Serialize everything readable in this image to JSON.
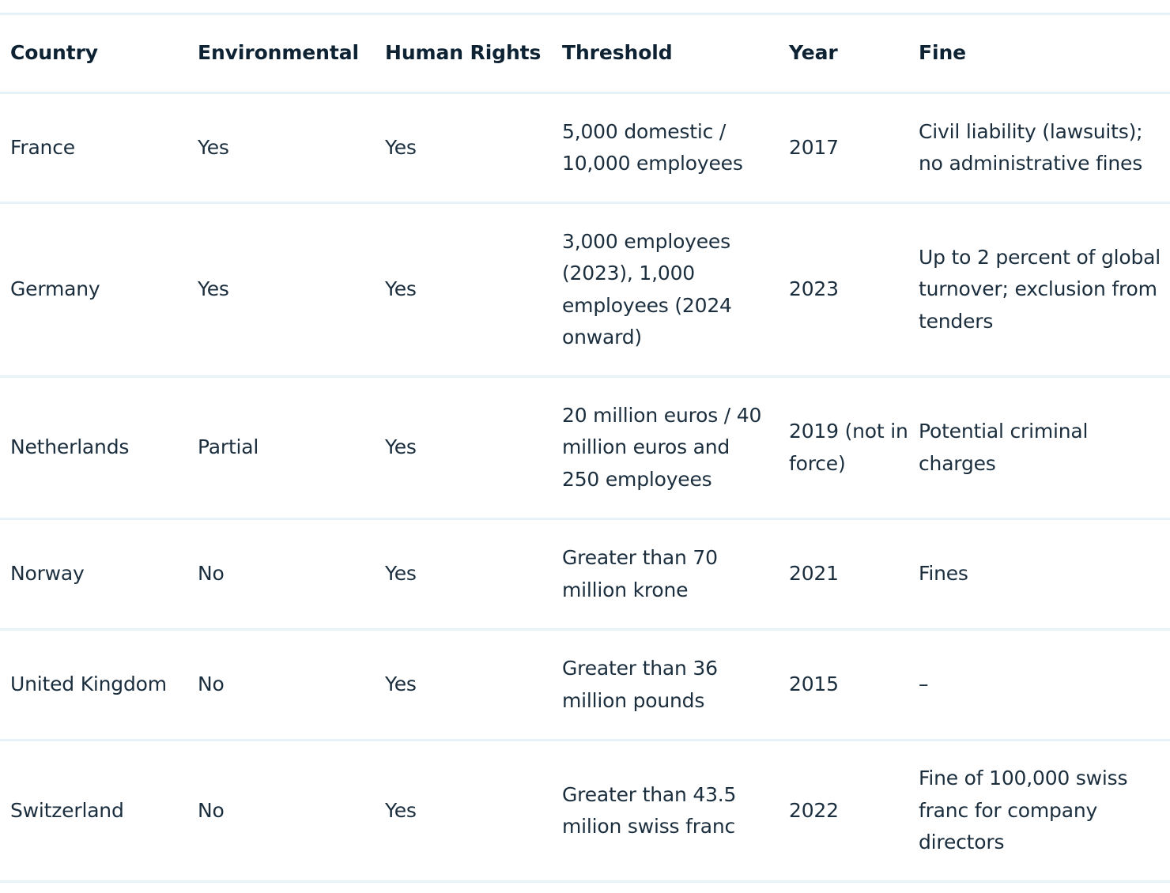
{
  "headers": {
    "country": "Country",
    "environmental": "Environmental",
    "human_rights": "Human Rights",
    "threshold": "Threshold",
    "year": "Year",
    "fine": "Fine"
  },
  "rows": [
    {
      "country": "France",
      "environmental": "Yes",
      "human_rights": "Yes",
      "threshold": "5,000 domestic / 10,000 employees",
      "year": "2017",
      "fine": "Civil liability (lawsuits); no administrative fines"
    },
    {
      "country": "Germany",
      "environmental": "Yes",
      "human_rights": "Yes",
      "threshold": "3,000 employees (2023), 1,000 employees (2024 onward)",
      "year": "2023",
      "fine": "Up to 2 percent of global turnover; exclusion from tenders"
    },
    {
      "country": "Netherlands",
      "environmental": "Partial",
      "human_rights": "Yes",
      "threshold": "20 million euros / 40 million euros and 250 employees",
      "year": "2019 (not in force)",
      "fine": "Potential criminal charges"
    },
    {
      "country": "Norway",
      "environmental": "No",
      "human_rights": "Yes",
      "threshold": "Greater than 70 million krone",
      "year": "2021",
      "fine": "Fines"
    },
    {
      "country": "United Kingdom",
      "environmental": "No",
      "human_rights": "Yes",
      "threshold": "Greater than 36 million pounds",
      "year": "2015",
      "fine": "–"
    },
    {
      "country": "Switzerland",
      "environmental": "No",
      "human_rights": "Yes",
      "threshold": "Greater than 43.5 milion swiss franc",
      "year": "2022",
      "fine": "Fine of 100,000 swiss franc for company directors"
    }
  ]
}
